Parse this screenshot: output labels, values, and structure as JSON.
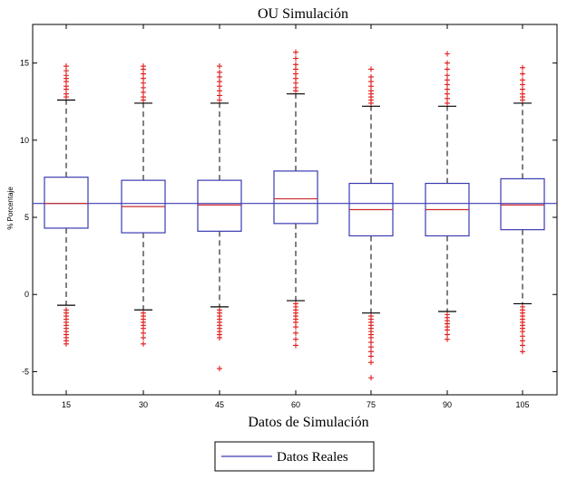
{
  "chart_data": {
    "type": "boxplot",
    "title": "OU Simulación",
    "xlabel": "Datos de Simulación",
    "ylabel": "% Porcentaje",
    "ylim": [
      -6.5,
      17.5
    ],
    "yticks": [
      -5,
      0,
      5,
      10,
      15
    ],
    "categories": [
      "15",
      "30",
      "45",
      "60",
      "75",
      "90",
      "105"
    ],
    "boxes": [
      {
        "category": "15",
        "q1": 4.3,
        "median": 5.9,
        "q3": 7.6,
        "whisker_low": -0.7,
        "whisker_high": 12.6,
        "outliers_low": [
          -1.0,
          -1.2,
          -1.4,
          -1.6,
          -1.8,
          -2.0,
          -2.2,
          -2.4,
          -2.6,
          -2.8,
          -3.0,
          -3.2
        ],
        "outliers_high": [
          12.8,
          13.0,
          13.3,
          13.5,
          13.8,
          14.0,
          14.2,
          14.5,
          14.8
        ]
      },
      {
        "category": "30",
        "q1": 4.0,
        "median": 5.7,
        "q3": 7.4,
        "whisker_low": -1.0,
        "whisker_high": 12.4,
        "outliers_low": [
          -1.2,
          -1.4,
          -1.6,
          -1.8,
          -2.0,
          -2.2,
          -2.5,
          -2.8,
          -3.2
        ],
        "outliers_high": [
          12.6,
          12.8,
          13.1,
          13.4,
          13.7,
          14.0,
          14.3,
          14.6,
          14.8
        ]
      },
      {
        "category": "45",
        "q1": 4.1,
        "median": 5.8,
        "q3": 7.4,
        "whisker_low": -0.8,
        "whisker_high": 12.4,
        "outliers_low": [
          -1.0,
          -1.2,
          -1.4,
          -1.6,
          -1.8,
          -2.0,
          -2.2,
          -2.4,
          -2.6,
          -2.8,
          -4.8
        ],
        "outliers_high": [
          12.6,
          12.9,
          13.2,
          13.5,
          13.8,
          14.1,
          14.4,
          14.8
        ]
      },
      {
        "category": "60",
        "q1": 4.6,
        "median": 6.2,
        "q3": 8.0,
        "whisker_low": -0.4,
        "whisker_high": 13.0,
        "outliers_low": [
          -0.6,
          -0.8,
          -1.0,
          -1.2,
          -1.4,
          -1.6,
          -1.8,
          -2.1,
          -2.5,
          -2.9,
          -3.3
        ],
        "outliers_high": [
          13.2,
          13.4,
          13.7,
          14.0,
          14.3,
          14.6,
          14.9,
          15.3,
          15.7
        ]
      },
      {
        "category": "75",
        "q1": 3.8,
        "median": 5.5,
        "q3": 7.2,
        "whisker_low": -1.2,
        "whisker_high": 12.2,
        "outliers_low": [
          -1.4,
          -1.6,
          -1.8,
          -2.0,
          -2.2,
          -2.4,
          -2.6,
          -2.8,
          -3.1,
          -3.4,
          -3.7,
          -4.0,
          -4.4,
          -5.4
        ],
        "outliers_high": [
          12.4,
          12.6,
          12.8,
          13.0,
          13.2,
          13.5,
          13.8,
          14.1,
          14.6
        ]
      },
      {
        "category": "90",
        "q1": 3.8,
        "median": 5.5,
        "q3": 7.2,
        "whisker_low": -1.1,
        "whisker_high": 12.2,
        "outliers_low": [
          -1.3,
          -1.5,
          -1.7,
          -1.9,
          -2.1,
          -2.3,
          -2.6,
          -2.9
        ],
        "outliers_high": [
          12.4,
          12.7,
          13.0,
          13.3,
          13.6,
          13.9,
          14.2,
          14.6,
          15.0,
          15.6
        ]
      },
      {
        "category": "105",
        "q1": 4.2,
        "median": 5.8,
        "q3": 7.5,
        "whisker_low": -0.6,
        "whisker_high": 12.4,
        "outliers_low": [
          -0.8,
          -1.0,
          -1.2,
          -1.4,
          -1.6,
          -1.8,
          -2.0,
          -2.2,
          -2.4,
          -2.7,
          -3.0,
          -3.3,
          -3.7
        ],
        "outliers_high": [
          12.6,
          12.8,
          13.0,
          13.3,
          13.6,
          13.9,
          14.3,
          14.7
        ]
      }
    ],
    "reference_line": {
      "name": "Datos Reales",
      "value": 5.9,
      "color": "#3b3bb3"
    },
    "legend": {
      "entries": [
        "Datos Reales"
      ],
      "position": "bottom-center"
    },
    "colors": {
      "box": "#3b3bb3",
      "median": "#cc2b2b",
      "outlier": "#e01b1b",
      "whisker": "#000000"
    }
  }
}
